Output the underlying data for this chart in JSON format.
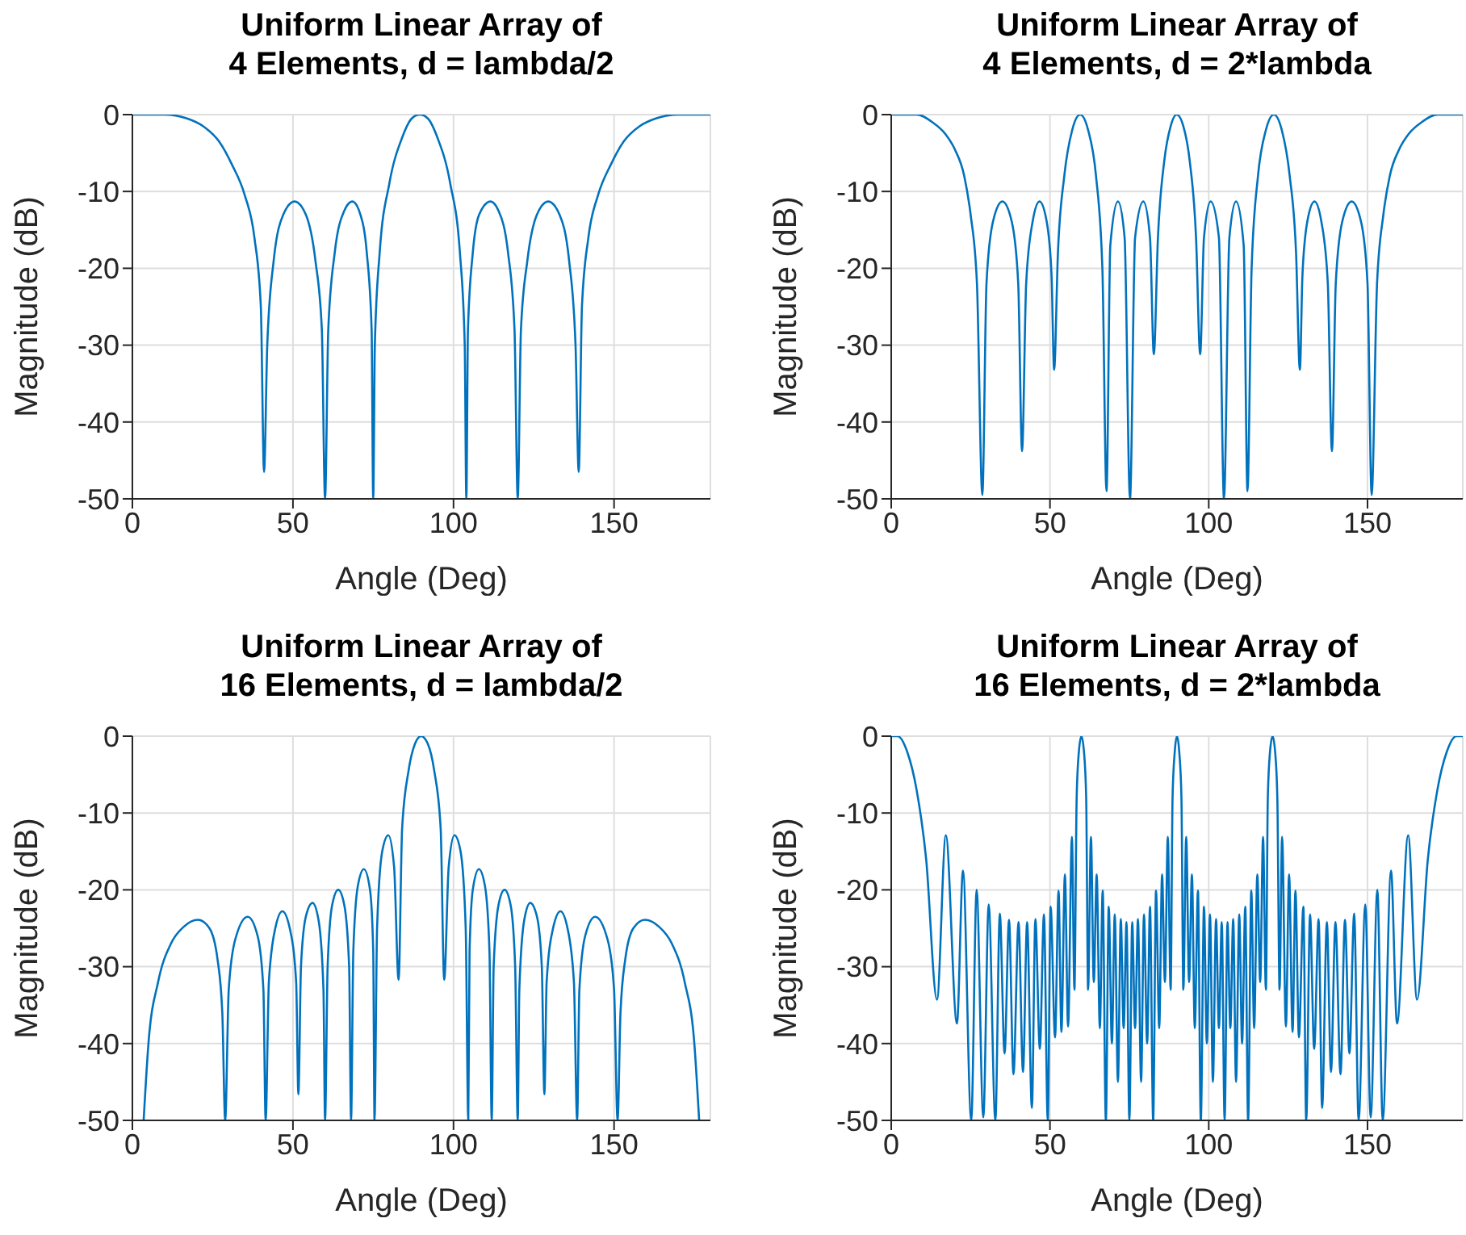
{
  "chart_data": [
    {
      "type": "line",
      "title": "Uniform Linear Array of\n4 Elements, d = lambda/2",
      "xlabel": "Angle (Deg)",
      "ylabel": "Magnitude (dB)",
      "xlim": [
        0,
        180
      ],
      "xticks": [
        0,
        50,
        100,
        150
      ],
      "ylim": [
        -50,
        0
      ],
      "yticks": [
        -50,
        -40,
        -30,
        -20,
        -10,
        0
      ],
      "grid": true,
      "marker": "none",
      "x": [
        0,
        10,
        17,
        22,
        27,
        31,
        35,
        38,
        40,
        41,
        42,
        44,
        47,
        50.5,
        54,
        57,
        59,
        60,
        61,
        63,
        66,
        68.5,
        71,
        73,
        74.5,
        75,
        75.5,
        77,
        80,
        84,
        87,
        89.5,
        92,
        95,
        99,
        102,
        103.5,
        104,
        104.5,
        106,
        108,
        111.5,
        114,
        117,
        119,
        120,
        121,
        123,
        126,
        129.5,
        133,
        136,
        138,
        139,
        140,
        142,
        145,
        149,
        153,
        158,
        163,
        170,
        180
      ],
      "series": [
        {
          "color": "#0072bd",
          "values": [
            0,
            0,
            -0.5,
            -1.5,
            -3.5,
            -6.5,
            -10.5,
            -16,
            -25,
            -46.5,
            -30,
            -19,
            -13,
            -11.3,
            -13,
            -19,
            -28,
            -50,
            -28,
            -18,
            -12.5,
            -11.3,
            -13,
            -18,
            -28,
            -50,
            -30,
            -18,
            -9,
            -3,
            -0.5,
            0,
            -0.5,
            -3,
            -9,
            -18,
            -30,
            -50,
            -28,
            -18,
            -13,
            -11.3,
            -12.5,
            -18,
            -28,
            -50,
            -28,
            -19,
            -13,
            -11.3,
            -13,
            -19,
            -30,
            -46.5,
            -25,
            -16,
            -10.5,
            -6.5,
            -3.5,
            -1.5,
            -0.5,
            0,
            0
          ]
        }
      ]
    },
    {
      "type": "line",
      "title": "Uniform Linear Array of\n4 Elements, d = 2*lambda",
      "xlabel": "Angle (Deg)",
      "ylabel": "Magnitude (dB)",
      "xlim": [
        0,
        180
      ],
      "xticks": [
        0,
        50,
        100,
        150
      ],
      "ylim": [
        -50,
        0
      ],
      "yticks": [
        -50,
        -40,
        -30,
        -20,
        -10,
        0
      ],
      "grid": true,
      "marker": "none",
      "x": [
        0,
        8,
        13,
        17,
        20,
        23,
        25,
        27,
        28.7,
        30,
        32,
        35,
        38,
        40,
        41.2,
        42.5,
        44.5,
        46.7,
        49,
        50.5,
        51.3,
        52.5,
        54.5,
        57,
        59.5,
        62,
        64.5,
        66.5,
        67.8,
        69,
        71.4,
        73.5,
        75.2,
        76.8,
        79.4,
        81.5,
        82.7,
        84,
        86,
        88,
        89.9,
        92,
        94,
        96,
        97.3,
        98.5,
        100.6,
        103.2,
        104.8,
        106.5,
        108.6,
        111,
        112.2,
        113.5,
        115.5,
        118,
        120.5,
        123,
        125.5,
        127.5,
        128.7,
        129.5,
        131,
        133.3,
        135.5,
        137.5,
        138.8,
        140,
        142,
        145,
        148,
        150,
        151.3,
        153,
        155,
        157,
        160,
        163,
        167,
        172,
        180
      ],
      "series": [
        {
          "color": "#0072bd",
          "values": [
            0,
            0,
            -1,
            -2.5,
            -4.5,
            -8,
            -13,
            -22,
            -49.5,
            -22,
            -14,
            -11.3,
            -14,
            -22,
            -43.8,
            -22,
            -14,
            -11.3,
            -14,
            -21,
            -33.2,
            -18,
            -8,
            -2,
            0,
            -2,
            -8,
            -20,
            -49,
            -17,
            -11.3,
            -16,
            -50,
            -16,
            -11.3,
            -16,
            -31.2,
            -16,
            -6,
            -1.5,
            0,
            -1.5,
            -6,
            -16,
            -31.2,
            -16,
            -11.3,
            -16,
            -50,
            -16,
            -11.3,
            -17,
            -49,
            -20,
            -8,
            -2,
            0,
            -2,
            -8,
            -18,
            -33.2,
            -21,
            -14,
            -11.3,
            -14,
            -22,
            -43.8,
            -22,
            -14,
            -11.3,
            -14,
            -22,
            -49.5,
            -22,
            -13,
            -8,
            -4.5,
            -2.5,
            -1,
            0,
            0
          ]
        }
      ]
    },
    {
      "type": "line",
      "title": "Uniform Linear Array of\n16 Elements, d = lambda/2",
      "xlabel": "Angle (Deg)",
      "ylabel": "Magnitude (dB)",
      "xlim": [
        0,
        180
      ],
      "xticks": [
        0,
        50,
        100,
        150
      ],
      "ylim": [
        -50,
        0
      ],
      "yticks": [
        -50,
        -40,
        -30,
        -20,
        -10,
        0
      ],
      "grid": true,
      "marker": "none",
      "x": [
        3.5,
        5,
        8,
        12,
        16,
        20.4,
        24,
        26.5,
        28,
        28.9,
        30,
        32,
        35.9,
        39,
        40.8,
        41.5,
        42.5,
        44.5,
        46.7,
        49,
        51,
        51.7,
        52.5,
        54,
        56.1,
        58,
        59.5,
        60,
        60.8,
        62.2,
        64.1,
        66,
        67.5,
        68.1,
        68.8,
        70.2,
        72.1,
        74,
        75,
        75.4,
        76.2,
        77.8,
        79.7,
        81.5,
        82.9,
        84,
        86,
        88,
        89.9,
        92,
        94,
        96,
        97.1,
        98.5,
        100.3,
        102.2,
        103.8,
        104.6,
        105,
        106,
        107.9,
        109.8,
        111.2,
        111.9,
        112.5,
        114,
        115.9,
        117.8,
        119.2,
        120,
        120.5,
        122,
        123.9,
        126,
        127.5,
        128.3,
        129,
        131,
        133.3,
        135.5,
        137.5,
        138.5,
        139.2,
        141,
        144.1,
        148,
        150,
        151.1,
        152,
        153.5,
        156,
        159.6,
        164,
        168,
        172,
        175,
        176.5
      ],
      "series": [
        {
          "color": "#0072bd",
          "values": [
            -50,
            -40,
            -32,
            -27,
            -24.8,
            -23.9,
            -25,
            -29,
            -36,
            -50,
            -33,
            -26.5,
            -23.5,
            -26,
            -33,
            -50,
            -32,
            -25,
            -22.8,
            -25,
            -32,
            -46.6,
            -30,
            -23.5,
            -21.7,
            -24,
            -33,
            -50,
            -30,
            -22,
            -20,
            -22,
            -30,
            -50,
            -28,
            -19.5,
            -17.3,
            -20,
            -28,
            -50,
            -25,
            -15,
            -12.9,
            -17,
            -31.7,
            -12,
            -4.5,
            -1,
            0,
            -1,
            -4.5,
            -12,
            -31.7,
            -17,
            -12.9,
            -15,
            -25,
            -50,
            -28,
            -20,
            -17.3,
            -19.5,
            -28,
            -50,
            -30,
            -22,
            -20,
            -22,
            -30,
            -50,
            -33,
            -24,
            -21.7,
            -23.5,
            -30,
            -46.6,
            -32,
            -25,
            -22.8,
            -25,
            -32,
            -50,
            -33,
            -26,
            -23.5,
            -26.5,
            -33,
            -50,
            -36,
            -29,
            -25,
            -23.9,
            -24.8,
            -27,
            -32,
            -40,
            -50
          ]
        }
      ]
    },
    {
      "type": "line",
      "title": "Uniform Linear Array of\n16 Elements, d = 2*lambda",
      "xlabel": "Angle (Deg)",
      "ylabel": "Magnitude (dB)",
      "xlim": [
        0,
        180
      ],
      "xticks": [
        0,
        50,
        100,
        150
      ],
      "ylim": [
        -50,
        0
      ],
      "yticks": [
        -50,
        -40,
        -30,
        -20,
        -10,
        0
      ],
      "grid": true,
      "marker": "none",
      "x": [
        0,
        2,
        5,
        8,
        11,
        14.4,
        17.2,
        20.7,
        22.6,
        25.2,
        26.9,
        29,
        30.7,
        32.8,
        34.2,
        35.7,
        37.1,
        38.5,
        40.1,
        41.5,
        42.8,
        44.3,
        45.4,
        46.8,
        48.1,
        49.3,
        50.2,
        51.6,
        52.7,
        53.6,
        54.7,
        55.7,
        56.9,
        57.7,
        58.4,
        59.1,
        59.9,
        60.7,
        61.4,
        62,
        62.9,
        63.8,
        64.7,
        65.7,
        66.6,
        67.6,
        68.5,
        69.5,
        70.4,
        71.4,
        72.3,
        73.2,
        74.1,
        75,
        75.9,
        76.8,
        77.7,
        78.7,
        79.6,
        80.6,
        81.5,
        82.5,
        83.4,
        84.4,
        85.3,
        86.2,
        87.1,
        88,
        88.6,
        89.3,
        90,
        90.7,
        91.4,
        92,
        92.9,
        93.8,
        94.7,
        95.6,
        96.6,
        97.5,
        98.5,
        99.4,
        100.4,
        101.3,
        102.3,
        103.2,
        104.1,
        105,
        105.9,
        106.8,
        107.7,
        108.6,
        109.6,
        110.5,
        111.5,
        112.4,
        113.4,
        114.3,
        115.3,
        116.2,
        117.1,
        118,
        118.6,
        119.3,
        120.1,
        120.9,
        121.6,
        122.3,
        123.1,
        124.3,
        125.3,
        126.4,
        127.3,
        128.4,
        129.8,
        130.7,
        131.9,
        133.2,
        134.6,
        135.7,
        137.2,
        138.5,
        139.9,
        141.5,
        142.9,
        144.3,
        145.8,
        147.2,
        149.3,
        151,
        153.1,
        154.8,
        157.4,
        159.3,
        162.8,
        165.6,
        169,
        172,
        175,
        178,
        180
      ],
      "series": [
        {
          "color": "#0072bd",
          "values": [
            0,
            0,
            -2,
            -7,
            -16,
            -34.3,
            -12.9,
            -37.4,
            -17.5,
            -50,
            -20,
            -49.6,
            -21.9,
            -50,
            -23.1,
            -41.3,
            -23.9,
            -44,
            -24.2,
            -43.7,
            -24.2,
            -48.4,
            -23.8,
            -40.7,
            -23.2,
            -50,
            -22.2,
            -39.2,
            -20.1,
            -38.5,
            -18,
            -37.8,
            -13.1,
            -33,
            -8,
            -2,
            0,
            -2,
            -8,
            -33,
            -13.1,
            -32,
            -18,
            -38,
            -20.1,
            -50,
            -22.2,
            -40,
            -23.2,
            -45,
            -23.8,
            -38,
            -24.2,
            -50,
            -24.2,
            -38,
            -23.8,
            -45,
            -23.2,
            -40,
            -22.2,
            -50,
            -20.1,
            -38,
            -18,
            -32,
            -13.1,
            -33,
            -8,
            -2,
            0,
            -2,
            -8,
            -33,
            -13.1,
            -32,
            -18,
            -38,
            -20.1,
            -50,
            -22.2,
            -40,
            -23.2,
            -45,
            -23.8,
            -38,
            -24.2,
            -50,
            -24.2,
            -38,
            -23.8,
            -45,
            -23.2,
            -40,
            -22.2,
            -50,
            -20.1,
            -38,
            -18,
            -32,
            -13.1,
            -33,
            -8,
            -2,
            0,
            -2,
            -8,
            -33,
            -13.1,
            -37.8,
            -18,
            -38.5,
            -20.1,
            -39.2,
            -22.2,
            -50,
            -23.2,
            -40.7,
            -23.8,
            -48.4,
            -24.2,
            -43.7,
            -24.2,
            -44,
            -23.9,
            -41.3,
            -23.1,
            -50,
            -21.9,
            -49.6,
            -20,
            -50,
            -17.5,
            -37.4,
            -12.9,
            -34.3,
            -16,
            -7,
            -2,
            0,
            0
          ]
        }
      ]
    }
  ]
}
